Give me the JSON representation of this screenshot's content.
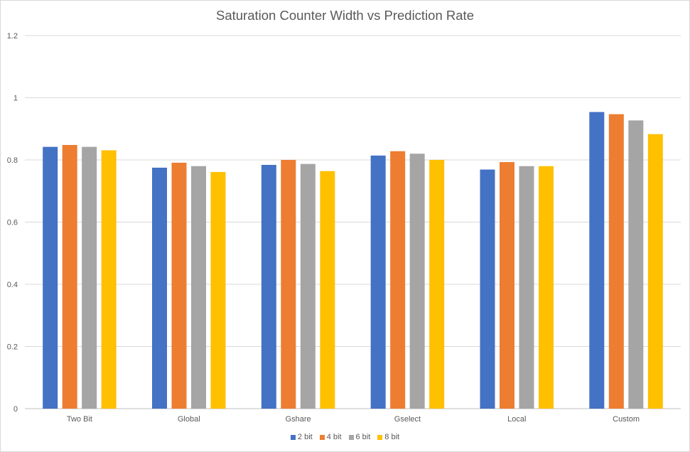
{
  "chart_data": {
    "type": "bar",
    "title": "Saturation Counter Width vs Prediction Rate",
    "categories": [
      "Two Bit",
      "Global",
      "Gshare",
      "Gselect",
      "Local",
      "Custom"
    ],
    "series": [
      {
        "name": "2 bit",
        "color": "#4472C4",
        "values": [
          0.842,
          0.775,
          0.784,
          0.814,
          0.769,
          0.954
        ]
      },
      {
        "name": "4 bit",
        "color": "#ED7D31",
        "values": [
          0.848,
          0.791,
          0.8,
          0.828,
          0.793,
          0.947
        ]
      },
      {
        "name": "6 bit",
        "color": "#A5A5A5",
        "values": [
          0.842,
          0.78,
          0.787,
          0.82,
          0.78,
          0.927
        ]
      },
      {
        "name": "8 bit",
        "color": "#FFC000",
        "values": [
          0.831,
          0.761,
          0.764,
          0.8,
          0.78,
          0.883
        ]
      }
    ],
    "ylim": [
      0,
      1.2
    ],
    "yticks": [
      "0",
      "0.2",
      "0.4",
      "0.6",
      "0.8",
      "1",
      "1.2"
    ],
    "grid": true,
    "legend_position": "bottom"
  }
}
